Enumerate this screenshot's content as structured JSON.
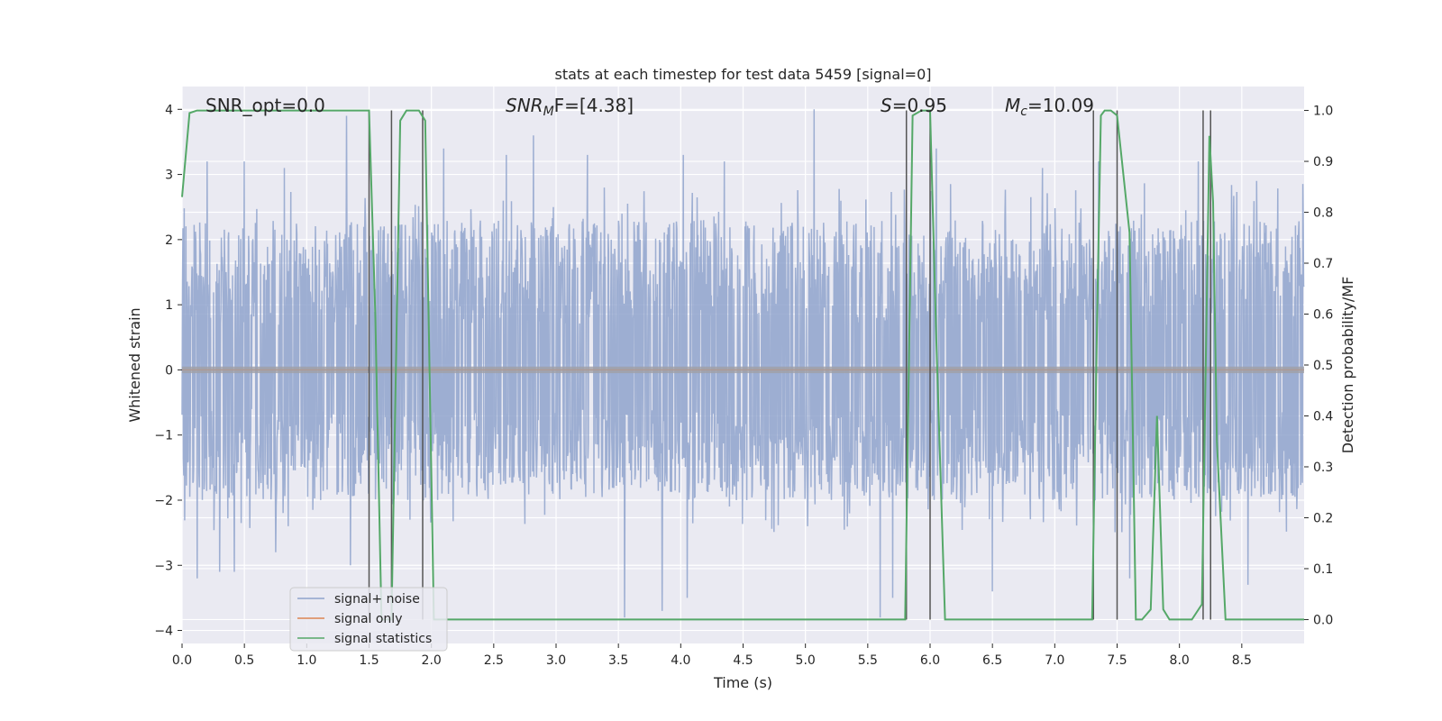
{
  "chart_data": {
    "type": "line",
    "title": "stats at each timestep for test data 5459 [signal=0]",
    "xlabel": "Time (s)",
    "ylabel": "Whitened strain",
    "y2label": "Detection probability/MF",
    "xlim": [
      0.0,
      9.0
    ],
    "ylim": [
      -4.2,
      4.35
    ],
    "y2lim": [
      -0.047,
      1.047
    ],
    "x_ticks": [
      0.0,
      0.5,
      1.0,
      1.5,
      2.0,
      2.5,
      3.0,
      3.5,
      4.0,
      4.5,
      5.0,
      5.5,
      6.0,
      6.5,
      7.0,
      7.5,
      8.0,
      8.5
    ],
    "x_tick_labels": [
      "0.0",
      "0.5",
      "1.0",
      "1.5",
      "2.0",
      "2.5",
      "3.0",
      "3.5",
      "4.0",
      "4.5",
      "5.0",
      "5.5",
      "6.0",
      "6.5",
      "7.0",
      "7.5",
      "8.0",
      "8.5"
    ],
    "y_ticks": [
      4,
      3,
      2,
      1,
      0,
      -1,
      -2,
      -3,
      -4
    ],
    "y_tick_labels": [
      "4",
      "3",
      "2",
      "1",
      "0",
      "−1",
      "−2",
      "−3",
      "−4"
    ],
    "y2_ticks": [
      1.0,
      0.9,
      0.8,
      0.7,
      0.6,
      0.5,
      0.4,
      0.3,
      0.2,
      0.1,
      0.0
    ],
    "y2_tick_labels": [
      "1.0",
      "0.9",
      "0.8",
      "0.7",
      "0.6",
      "0.5",
      "0.4",
      "0.3",
      "0.2",
      "0.1",
      "0.0"
    ],
    "grid": true,
    "legend_position": "bottom-left",
    "annotations": [
      {
        "text": "SNR_opt=0.0",
        "x": 0.2
      },
      {
        "text": "SNR",
        "sub": "M",
        "after": "F=[4.38]",
        "x": 2.6
      },
      {
        "text": "S",
        "after": "=0.95",
        "x": 5.6
      },
      {
        "text": "M",
        "sub": "c",
        "after": "=10.09",
        "x": 6.6
      }
    ],
    "series": [
      {
        "name": "signal+ noise",
        "color": "#8fa3cc",
        "axis": "left",
        "typical_range": [
          -2.0,
          2.3
        ],
        "spikes": [
          [
            0.2,
            3.2
          ],
          [
            0.5,
            3.2
          ],
          [
            0.82,
            3.1
          ],
          [
            1.32,
            3.9
          ],
          [
            2.1,
            3.4
          ],
          [
            2.6,
            3.3
          ],
          [
            2.82,
            3.6
          ],
          [
            3.25,
            3.3
          ],
          [
            4.02,
            3.3
          ],
          [
            4.35,
            3.2
          ],
          [
            5.07,
            4.0
          ],
          [
            6.05,
            3.4
          ],
          [
            6.9,
            3.1
          ],
          [
            7.35,
            3.2
          ],
          [
            8.15,
            3.2
          ],
          [
            8.62,
            2.9
          ],
          [
            0.12,
            -3.2
          ],
          [
            0.3,
            -3.1
          ],
          [
            0.42,
            -3.1
          ],
          [
            0.75,
            -2.8
          ],
          [
            1.35,
            -3.0
          ],
          [
            3.55,
            -3.8
          ],
          [
            3.85,
            -3.7
          ],
          [
            4.05,
            -3.5
          ],
          [
            5.6,
            -3.8
          ],
          [
            5.7,
            -3.5
          ],
          [
            6.5,
            -3.4
          ],
          [
            7.6,
            -3.2
          ],
          [
            8.55,
            -3.3
          ]
        ]
      },
      {
        "name": "signal only",
        "color": "#dd8452",
        "axis": "left",
        "x": [
          0.0,
          9.0
        ],
        "y": [
          0.0,
          0.0
        ]
      },
      {
        "name": "signal statistics",
        "color": "#55a868",
        "axis": "right",
        "x": [
          0.0,
          0.06,
          0.12,
          1.5,
          1.55,
          1.6,
          1.68,
          1.75,
          1.8,
          1.9,
          1.95,
          2.02,
          2.08,
          5.8,
          5.86,
          5.93,
          6.0,
          6.05,
          6.12,
          7.3,
          7.34,
          7.37,
          7.4,
          7.45,
          7.5,
          7.6,
          7.65,
          7.7,
          7.77,
          7.82,
          7.87,
          7.92,
          8.1,
          8.18,
          8.24,
          8.27,
          8.3,
          8.37,
          8.6,
          9.0
        ],
        "y": [
          0.83,
          0.995,
          1.0,
          1.0,
          0.6,
          0.0,
          0.0,
          0.98,
          1.0,
          1.0,
          0.98,
          0.0,
          0.0,
          0.0,
          0.99,
          1.0,
          1.0,
          0.55,
          0.0,
          0.0,
          0.6,
          0.99,
          1.0,
          1.0,
          0.99,
          0.76,
          0.0,
          0.0,
          0.02,
          0.4,
          0.02,
          0.0,
          0.0,
          0.03,
          0.95,
          0.82,
          0.35,
          0.0,
          0.0,
          0.0
        ]
      }
    ],
    "vertical_lines": {
      "color": "#555555",
      "x": [
        1.5,
        1.68,
        1.93,
        5.81,
        6.0,
        7.31,
        7.5,
        8.19,
        8.25
      ]
    }
  },
  "legend": {
    "items": [
      "signal+ noise",
      "signal only",
      "signal statistics"
    ]
  }
}
